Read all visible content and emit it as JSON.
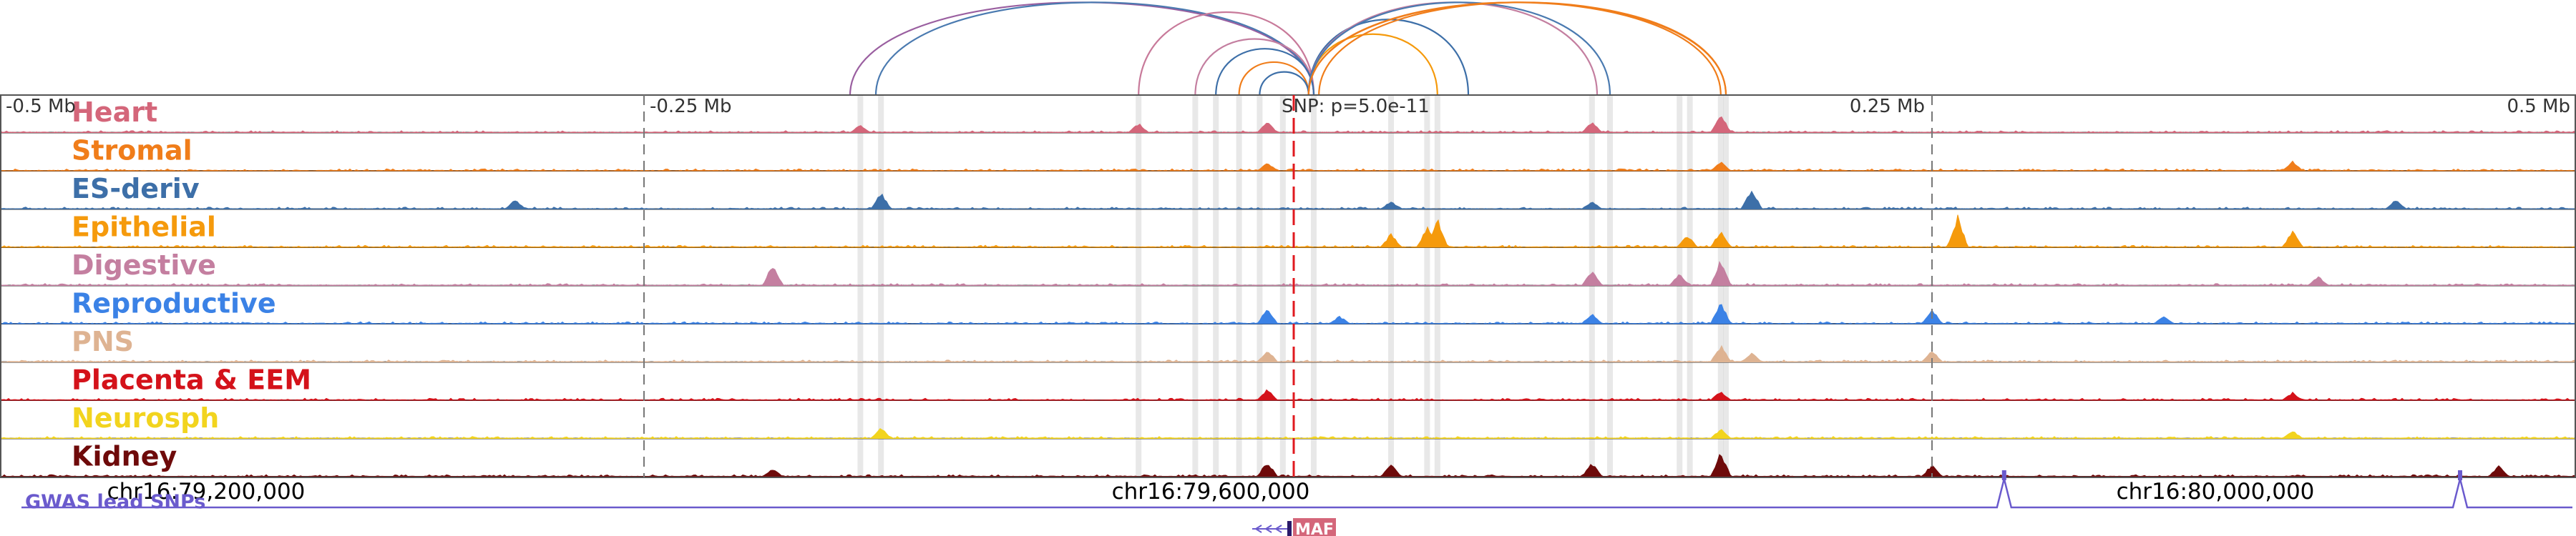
{
  "chart_data": {
    "type": "area",
    "subtitle": "",
    "axis_ticks": [
      {
        "value": -0.5,
        "label": "-0.5 Mb"
      },
      {
        "value": -0.25,
        "label": "-0.25 Mb"
      },
      {
        "value": 0.25,
        "label": "0.25 Mb"
      },
      {
        "value": 0.5,
        "label": "0.5 Mb"
      }
    ],
    "xlim_mb": [
      -0.5,
      0.5
    ],
    "snp": {
      "position_mb": 0.0,
      "label": "SNP: p=5.0e-11",
      "color": "#e0191f"
    },
    "coordinates": [
      {
        "position_mb": -0.42,
        "label": "chr16:79,200,000"
      },
      {
        "position_mb": -0.03,
        "label": "chr16:79,600,000"
      },
      {
        "position_mb": 0.36,
        "label": "chr16:80,000,000"
      }
    ],
    "tracks": [
      {
        "name": "Heart",
        "color": "#d4667a"
      },
      {
        "name": "Stromal",
        "color": "#f07d1a"
      },
      {
        "name": "ES-deriv",
        "color": "#3d6fa8"
      },
      {
        "name": "Epithelial",
        "color": "#f59a0c"
      },
      {
        "name": "Digestive",
        "color": "#c47fa0"
      },
      {
        "name": "Reproductive",
        "color": "#3b82e6"
      },
      {
        "name": "PNS",
        "color": "#deb392"
      },
      {
        "name": "Placenta & EEM",
        "color": "#d4121a"
      },
      {
        "name": "Neurosph",
        "color": "#f2d41e"
      },
      {
        "name": "Kidney",
        "color": "#6e0a0a"
      }
    ],
    "peak_highlights_mb": [
      -0.166,
      -0.158,
      -0.058,
      -0.036,
      -0.028,
      -0.019,
      -0.011,
      -0.002,
      0.01,
      0.04,
      0.054,
      0.058,
      0.118,
      0.125,
      0.152,
      0.156,
      0.168,
      0.17
    ],
    "peaks": [
      {
        "track": "Heart",
        "peaks": [
          [
            -0.166,
            0.25
          ],
          [
            -0.058,
            0.3
          ],
          [
            -0.008,
            0.35
          ],
          [
            0.118,
            0.35
          ],
          [
            0.168,
            0.6
          ]
        ]
      },
      {
        "track": "Stromal",
        "peaks": [
          [
            -0.008,
            0.25
          ],
          [
            0.168,
            0.3
          ],
          [
            0.39,
            0.3
          ]
        ]
      },
      {
        "track": "ES-deriv",
        "peaks": [
          [
            -0.3,
            0.3
          ],
          [
            -0.158,
            0.55
          ],
          [
            0.04,
            0.25
          ],
          [
            0.118,
            0.25
          ],
          [
            0.18,
            0.7
          ],
          [
            0.43,
            0.3
          ]
        ]
      },
      {
        "track": "Epithelial",
        "peaks": [
          [
            0.04,
            0.45
          ],
          [
            0.054,
            0.65
          ],
          [
            0.058,
            1.0
          ],
          [
            0.168,
            0.55
          ],
          [
            0.155,
            0.4
          ],
          [
            0.26,
            1.0
          ],
          [
            0.39,
            0.55
          ]
        ]
      },
      {
        "track": "Digestive",
        "peaks": [
          [
            -0.2,
            0.7
          ],
          [
            0.118,
            0.5
          ],
          [
            0.152,
            0.4
          ],
          [
            0.168,
            0.85
          ],
          [
            0.4,
            0.3
          ]
        ]
      },
      {
        "track": "Reproductive",
        "peaks": [
          [
            -0.008,
            0.5
          ],
          [
            0.02,
            0.25
          ],
          [
            0.118,
            0.35
          ],
          [
            0.168,
            0.7
          ],
          [
            0.25,
            0.5
          ],
          [
            0.34,
            0.25
          ]
        ]
      },
      {
        "track": "PNS",
        "peaks": [
          [
            -0.008,
            0.4
          ],
          [
            0.168,
            0.55
          ],
          [
            0.18,
            0.3
          ],
          [
            0.25,
            0.4
          ]
        ]
      },
      {
        "track": "Placenta & EEM",
        "peaks": [
          [
            -0.008,
            0.35
          ],
          [
            0.168,
            0.3
          ],
          [
            0.39,
            0.25
          ]
        ]
      },
      {
        "track": "Neurosph",
        "peaks": [
          [
            -0.158,
            0.35
          ],
          [
            0.168,
            0.3
          ],
          [
            0.39,
            0.25
          ]
        ]
      },
      {
        "track": "Kidney",
        "peaks": [
          [
            -0.2,
            0.25
          ],
          [
            -0.008,
            0.5
          ],
          [
            0.04,
            0.4
          ],
          [
            0.118,
            0.45
          ],
          [
            0.168,
            0.8
          ],
          [
            0.25,
            0.4
          ],
          [
            0.47,
            0.35
          ]
        ]
      }
    ],
    "loops": [
      {
        "start_mb": -0.17,
        "end_mb": 0.01,
        "color": "#9a5fa0"
      },
      {
        "start_mb": -0.16,
        "end_mb": 0.01,
        "color": "#4a7ab0"
      },
      {
        "start_mb": -0.058,
        "end_mb": 0.01,
        "color": "#c87a9a"
      },
      {
        "start_mb": -0.036,
        "end_mb": 0.01,
        "color": "#c47fa0"
      },
      {
        "start_mb": -0.028,
        "end_mb": 0.01,
        "color": "#3d6fa8"
      },
      {
        "start_mb": -0.019,
        "end_mb": 0.008,
        "color": "#f07d1a"
      },
      {
        "start_mb": -0.011,
        "end_mb": 0.008,
        "color": "#3d6fa8"
      },
      {
        "start_mb": 0.008,
        "end_mb": 0.058,
        "color": "#f59a0c"
      },
      {
        "start_mb": 0.008,
        "end_mb": 0.07,
        "color": "#3d6fa8"
      },
      {
        "start_mb": 0.008,
        "end_mb": 0.12,
        "color": "#c47fa0"
      },
      {
        "start_mb": 0.008,
        "end_mb": 0.125,
        "color": "#4a7ab0"
      },
      {
        "start_mb": 0.008,
        "end_mb": 0.168,
        "color": "#f07d1a"
      },
      {
        "start_mb": 0.008,
        "end_mb": 0.17,
        "color": "#f07d1a"
      },
      {
        "start_mb": 0.012,
        "end_mb": 0.17,
        "color": "#f07d1a"
      }
    ],
    "gwas": {
      "label": "GWAS lead SNPs",
      "color": "#6a5acd",
      "markers_mb": [
        0.278,
        0.455
      ]
    },
    "genes": [
      {
        "name": "MAF",
        "start_mb": 0.0,
        "end_mb": 0.015,
        "strand": "-",
        "color": "#d4667a"
      }
    ]
  }
}
